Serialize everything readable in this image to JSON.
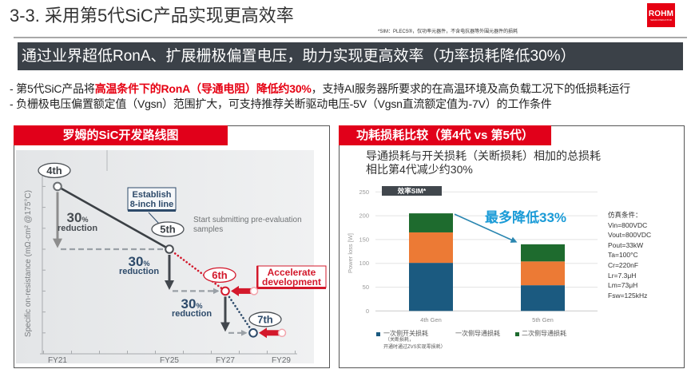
{
  "slide": {
    "title": "3-3. 采用第5代SiC产品实现更高效率",
    "footnote": "*SIM：PLECS®，仅功率元器件，不含电抗器等外围元器件的损耗",
    "logo": {
      "name": "ROHM",
      "sub": "SEMICONDUCTOR"
    },
    "banner": "通过业界超低RonA、扩展栅极偏置电压，助力实现更高效率（功率损耗降低30%）",
    "bullets": [
      {
        "prefix": "- 第5代SiC产品将",
        "highlight": "高温条件下的RonA（导通电阻）降低约30%",
        "suffix": "，支持AI服务器所要求的在高温环境及高负载工况下的低损耗运行"
      },
      {
        "prefix": "- 负栅极电压偏置额定值（Vgsn）范围扩大，可支持推荐关断驱动电压-5V（Vgsn直流额定值为-7V）的工作条件",
        "highlight": "",
        "suffix": ""
      }
    ]
  },
  "roadmap_panel": {
    "title": "罗姆的SiC开发路线图",
    "y_axis_label": "Specific on-resistance (mΩ·cm² @175°C)",
    "reductions": [
      {
        "value": "30",
        "unit": "%",
        "text": "reduction"
      },
      {
        "value": "30",
        "unit": "%",
        "text": "reduction"
      },
      {
        "value": "30",
        "unit": "%",
        "text": "reduction"
      }
    ],
    "establish_note": {
      "line1": "Establish",
      "line2": "8-inch line"
    },
    "sample_note": {
      "line1": "Start submitting  pre-evaluation",
      "line2": "samples"
    },
    "accelerate_note": {
      "line1": "Accelerate",
      "line2": "development"
    }
  },
  "loss_panel": {
    "title": "功耗损耗比较（第4代 vs 第5代）",
    "subtitle_line1": "导通损耗与开关损耗（关断损耗）相加的总损耗",
    "subtitle_line2": "相比第4代减少约30%",
    "badge": "效率SIM*",
    "y_axis_label": "Power loss [W]",
    "callout": "最多降低33%",
    "conditions": [
      "仿真条件：",
      "Vin=800VDC",
      "Vout=800VDC",
      "Pout=33kW",
      "Ta=100°C",
      "Cr=220nF",
      "Lr=7.3μH",
      "Lm=73μH",
      "Fsw=125kHz"
    ],
    "legend": {
      "item1": "一次侧开关损耗",
      "item1_note1": "（关断损耗，",
      "item1_note2": "开通时通过ZVS实现零损耗）",
      "item2": "一次侧导通损耗",
      "item3": "二次侧导通损耗"
    }
  },
  "colors": {
    "brand_red": "#e60012",
    "panel_header_red": "#e1001a",
    "banner_bg": "#3b4148",
    "gen_4th": "#6a6e72",
    "gen_5th": "#4a4f54",
    "gen_6th": "#d3182b",
    "gen_7th": "#2d4a6a",
    "navy": "#2d4a6a",
    "callout_blue": "#1a9bd7",
    "arrow_blue": "#2a86b0"
  },
  "chart_data": [
    {
      "type": "line",
      "title": "罗姆的SiC开发路线图",
      "xlabel": "",
      "ylabel": "Specific on-resistance (mΩ·cm² @175°C)",
      "x_ticks": [
        {
          "label": "FY21",
          "fy": 21
        },
        {
          "label": "FY25",
          "fy": 25
        },
        {
          "label": "FY27",
          "fy": 27
        },
        {
          "label": "FY29",
          "fy": 29
        }
      ],
      "ylim_tick_units": [
        0,
        8
      ],
      "grid": false,
      "series": [
        {
          "name": "SiC generations",
          "points": [
            {
              "label": "4th",
              "fy": 21,
              "level": 8,
              "accelerated": false
            },
            {
              "label": "5th",
              "fy": 25,
              "level": 5,
              "accelerated": false
            },
            {
              "label": "6th",
              "fy": 27,
              "level": 3,
              "accelerated": true
            },
            {
              "label": "7th",
              "fy": 28,
              "level": 1,
              "accelerated": true
            }
          ]
        }
      ],
      "annotations": [
        "30% reduction",
        "30% reduction",
        "30% reduction",
        "Establish 8-inch line",
        "Start submitting pre-evaluation samples",
        "Accelerate development"
      ]
    },
    {
      "type": "bar",
      "stacked": true,
      "title": "功耗损耗比较（第4代 vs 第5代）",
      "categories": [
        "4th Gen",
        "5th Gen"
      ],
      "series": [
        {
          "name": "一次侧开关损耗",
          "color": "#1b5a80",
          "values": [
            101,
            54
          ]
        },
        {
          "name": "一次侧导通损耗",
          "color": "#ec7a35",
          "values": [
            64,
            50
          ]
        },
        {
          "name": "二次侧导通损耗",
          "color": "#1e6b2e",
          "values": [
            40,
            36
          ]
        }
      ],
      "totals": [
        205,
        140
      ],
      "xlabel": "",
      "ylabel": "Power loss [W]",
      "ylim": [
        0,
        250
      ],
      "yticks": [
        0,
        50,
        100,
        150,
        200,
        250
      ],
      "grid": true,
      "legend_position": "bottom",
      "annotation": "最多降低33%"
    }
  ]
}
